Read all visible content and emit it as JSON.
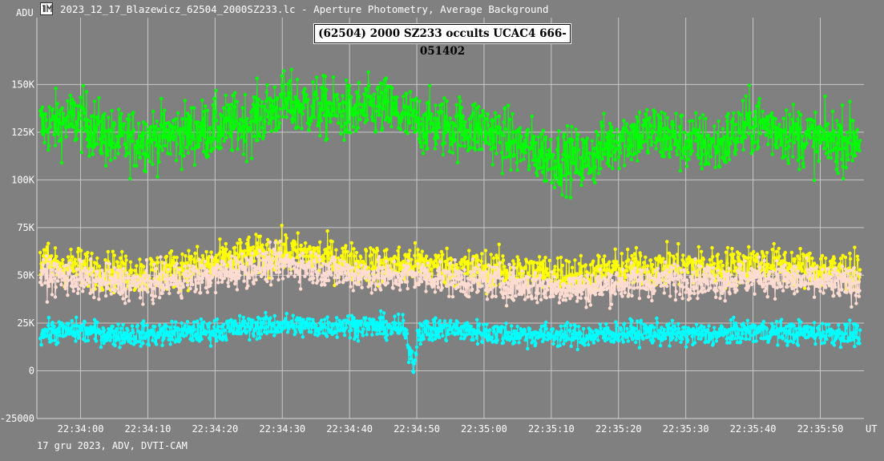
{
  "window": {
    "title": "2023_12_17_Blazewicz_62504_2000SZ233.lc - Aperture Photometry, Average Background",
    "icon": "tangra-logo-icon"
  },
  "footer": "17 gru 2023, ADV, DVTI-CAM",
  "colors": {
    "background": "#808080",
    "grid": "#c8c8c8",
    "target": "#00ff00",
    "comp1": "#ffff00",
    "comp2": "#ffdcd2",
    "comp3": "#00ffff"
  },
  "chart_data": {
    "type": "line",
    "title": "(62504) 2000 SZ233 occults UCAC4 666-051402",
    "ylabel": "ADU",
    "xlabel": "UT",
    "ylim": [
      -25000,
      185000
    ],
    "xlim": [
      "22:33:53.5",
      "22:35:56.5"
    ],
    "grid": true,
    "markers": true,
    "yticks": [
      {
        "label": "-25000",
        "value": -25000
      },
      {
        "label": "0",
        "value": 0
      },
      {
        "label": "25K",
        "value": 25000
      },
      {
        "label": "50K",
        "value": 50000
      },
      {
        "label": "75K",
        "value": 75000
      },
      {
        "label": "100K",
        "value": 100000
      },
      {
        "label": "125K",
        "value": 125000
      },
      {
        "label": "150K",
        "value": 150000
      }
    ],
    "xticks": [
      "22:34:00",
      "22:34:10",
      "22:34:20",
      "22:34:30",
      "22:34:40",
      "22:34:50",
      "22:35:00",
      "22:35:10",
      "22:35:20",
      "22:35:30",
      "22:35:40",
      "22:35:50"
    ],
    "sample_interval_s": 0.08,
    "series": [
      {
        "color": "#00ff00",
        "noise": 8000,
        "x": [
          "22:33:54",
          "22:34:00",
          "22:34:05",
          "22:34:10",
          "22:34:15",
          "22:34:20",
          "22:34:25",
          "22:34:30",
          "22:34:35",
          "22:34:40",
          "22:34:45",
          "22:34:50",
          "22:34:55",
          "22:35:00",
          "22:35:05",
          "22:35:10",
          "22:35:15",
          "22:35:20",
          "22:35:25",
          "22:35:30",
          "22:35:35",
          "22:35:40",
          "22:35:45",
          "22:35:50",
          "22:35:56"
        ],
        "values": [
          128000,
          132000,
          120000,
          122000,
          124000,
          127000,
          130000,
          140000,
          138000,
          135000,
          138000,
          130000,
          128000,
          127000,
          118000,
          112000,
          110000,
          122000,
          125000,
          120000,
          118000,
          130000,
          125000,
          120000,
          122000
        ]
      },
      {
        "color": "#ffff00",
        "noise": 5000,
        "x": [
          "22:33:54",
          "22:34:00",
          "22:34:05",
          "22:34:10",
          "22:34:15",
          "22:34:20",
          "22:34:25",
          "22:34:30",
          "22:34:35",
          "22:34:40",
          "22:34:45",
          "22:34:50",
          "22:34:55",
          "22:35:00",
          "22:35:05",
          "22:35:10",
          "22:35:15",
          "22:35:20",
          "22:35:25",
          "22:35:30",
          "22:35:35",
          "22:35:40",
          "22:35:45",
          "22:35:50",
          "22:35:56"
        ],
        "values": [
          57000,
          54000,
          52000,
          51000,
          54000,
          56000,
          60000,
          62000,
          60000,
          57000,
          55000,
          56000,
          54000,
          53000,
          52000,
          51000,
          50000,
          53000,
          54000,
          55000,
          54000,
          56000,
          55000,
          53000,
          52000
        ]
      },
      {
        "color": "#ffdcd2",
        "noise": 4500,
        "x": [
          "22:33:54",
          "22:34:00",
          "22:34:05",
          "22:34:10",
          "22:34:15",
          "22:34:20",
          "22:34:25",
          "22:34:30",
          "22:34:35",
          "22:34:40",
          "22:34:45",
          "22:34:50",
          "22:34:55",
          "22:35:00",
          "22:35:05",
          "22:35:10",
          "22:35:15",
          "22:35:20",
          "22:35:25",
          "22:35:30",
          "22:35:35",
          "22:35:40",
          "22:35:45",
          "22:35:50",
          "22:35:56"
        ],
        "values": [
          50000,
          48000,
          46000,
          45000,
          48000,
          50000,
          54000,
          56000,
          54000,
          51000,
          49000,
          50000,
          48000,
          47000,
          45000,
          44000,
          43000,
          46000,
          47000,
          48000,
          47000,
          49000,
          48000,
          46000,
          45000
        ]
      },
      {
        "color": "#00ffff",
        "noise": 3000,
        "x": [
          "22:33:54",
          "22:34:00",
          "22:34:05",
          "22:34:10",
          "22:34:15",
          "22:34:20",
          "22:34:25",
          "22:34:30",
          "22:34:35",
          "22:34:40",
          "22:34:45",
          "22:34:48",
          "22:34:49.6",
          "22:34:50.2",
          "22:34:52",
          "22:34:55",
          "22:35:00",
          "22:35:05",
          "22:35:10",
          "22:35:15",
          "22:35:20",
          "22:35:25",
          "22:35:30",
          "22:35:35",
          "22:35:40",
          "22:35:45",
          "22:35:50",
          "22:35:56"
        ],
        "values": [
          20000,
          21000,
          19000,
          19000,
          20000,
          21000,
          23000,
          24000,
          23000,
          24000,
          23000,
          22000,
          3000,
          21000,
          21000,
          22000,
          20000,
          19000,
          19000,
          18000,
          20000,
          20000,
          19000,
          19000,
          21000,
          20000,
          20000,
          19000
        ]
      }
    ]
  }
}
